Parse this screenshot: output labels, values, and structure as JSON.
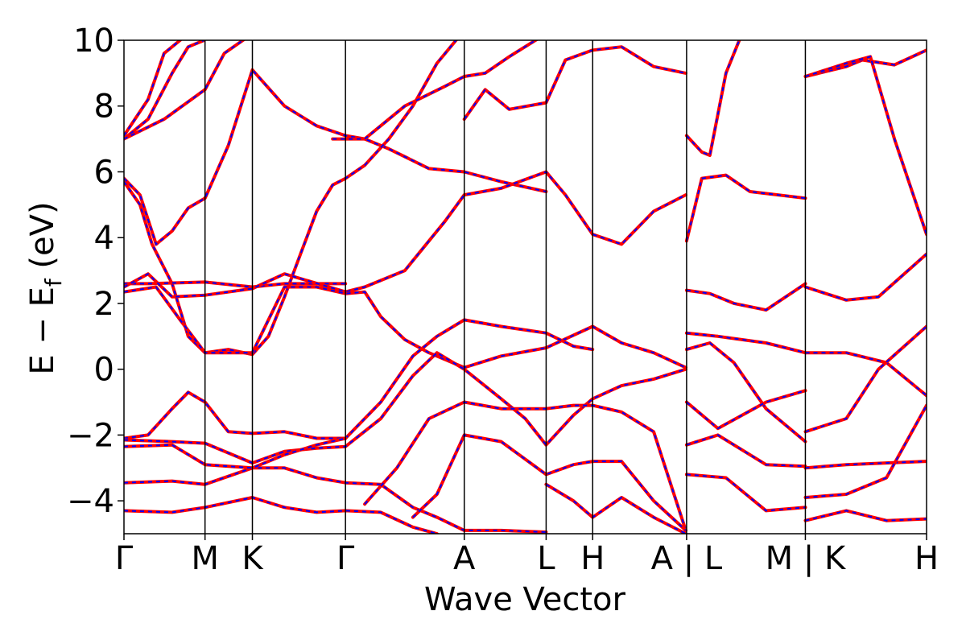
{
  "chart_data": {
    "type": "line",
    "title": "",
    "xlabel": "Wave Vector",
    "ylabel": "E − E",
    "ylabel_sub": "f",
    "ylabel_unit": " (eV)",
    "ylim": [
      -5,
      10
    ],
    "y_ticks": [
      -4,
      -2,
      0,
      2,
      4,
      6,
      8,
      10
    ],
    "y_tick_labels": [
      "−4",
      "−2",
      "0",
      "2",
      "4",
      "6",
      "8",
      "10"
    ],
    "x_ticks": [
      {
        "pos": 0.0,
        "label": "Γ"
      },
      {
        "pos": 0.101,
        "label": "M"
      },
      {
        "pos": 0.16,
        "label": "K"
      },
      {
        "pos": 0.276,
        "label": "Γ"
      },
      {
        "pos": 0.424,
        "label": "A"
      },
      {
        "pos": 0.526,
        "label": "L"
      },
      {
        "pos": 0.584,
        "label": "H"
      },
      {
        "pos": 0.701,
        "label": "A | L"
      },
      {
        "pos": 0.849,
        "label": "M | K"
      },
      {
        "pos": 1.0,
        "label": "H"
      }
    ],
    "xlim": [
      0,
      1
    ],
    "grid": false,
    "legend": "none",
    "colors": {
      "series_a": "#ff0000",
      "series_b": "#0000ff",
      "vline": "#000000"
    },
    "series": [
      {
        "values": [
          [
            0,
            7.0
          ],
          [
            0.03,
            7.6
          ],
          [
            0.06,
            9.0
          ],
          [
            0.08,
            9.8
          ],
          [
            0.1,
            10.0
          ]
        ]
      },
      {
        "values": [
          [
            0,
            7.1
          ],
          [
            0.03,
            8.2
          ],
          [
            0.05,
            9.6
          ],
          [
            0.07,
            10.0
          ]
        ]
      },
      {
        "values": [
          [
            0,
            7.0
          ],
          [
            0.05,
            7.6
          ],
          [
            0.101,
            8.5
          ],
          [
            0.125,
            9.6
          ],
          [
            0.16,
            10.2
          ]
        ]
      },
      {
        "values": [
          [
            0,
            5.8
          ],
          [
            0.02,
            5.3
          ],
          [
            0.04,
            3.8
          ],
          [
            0.06,
            4.2
          ],
          [
            0.08,
            4.9
          ],
          [
            0.101,
            5.2
          ],
          [
            0.13,
            6.8
          ],
          [
            0.16,
            9.1
          ],
          [
            0.2,
            8.0
          ],
          [
            0.24,
            7.4
          ],
          [
            0.276,
            7.1
          ],
          [
            0.3,
            7.0
          ],
          [
            0.33,
            6.7
          ],
          [
            0.38,
            6.1
          ],
          [
            0.424,
            6.0
          ],
          [
            0.47,
            5.7
          ],
          [
            0.526,
            5.4
          ]
        ]
      },
      {
        "values": [
          [
            0,
            5.7
          ],
          [
            0.02,
            5.0
          ],
          [
            0.035,
            3.8
          ],
          [
            0.06,
            2.6
          ],
          [
            0.08,
            1.0
          ],
          [
            0.101,
            0.5
          ],
          [
            0.13,
            0.6
          ],
          [
            0.16,
            0.45
          ],
          [
            0.18,
            1.0
          ],
          [
            0.2,
            2.2
          ],
          [
            0.22,
            3.5
          ],
          [
            0.24,
            4.8
          ],
          [
            0.26,
            5.6
          ],
          [
            0.276,
            5.8
          ],
          [
            0.3,
            6.2
          ],
          [
            0.33,
            7.0
          ],
          [
            0.36,
            8.0
          ],
          [
            0.39,
            9.3
          ],
          [
            0.424,
            10.3
          ]
        ]
      },
      {
        "values": [
          [
            0,
            2.6
          ],
          [
            0.03,
            2.6
          ],
          [
            0.101,
            2.65
          ],
          [
            0.16,
            2.5
          ],
          [
            0.2,
            2.6
          ],
          [
            0.276,
            2.6
          ]
        ]
      },
      {
        "values": [
          [
            0,
            2.5
          ],
          [
            0.03,
            2.9
          ],
          [
            0.06,
            2.2
          ],
          [
            0.101,
            2.25
          ],
          [
            0.16,
            2.45
          ],
          [
            0.2,
            2.9
          ],
          [
            0.276,
            2.35
          ],
          [
            0.3,
            2.5
          ],
          [
            0.35,
            3.0
          ],
          [
            0.4,
            4.5
          ],
          [
            0.424,
            5.3
          ],
          [
            0.47,
            5.5
          ],
          [
            0.526,
            6.0
          ],
          [
            0.55,
            5.3
          ],
          [
            0.584,
            4.1
          ],
          [
            0.62,
            3.8
          ],
          [
            0.66,
            4.8
          ],
          [
            0.7,
            5.3
          ]
        ]
      },
      {
        "values": [
          [
            0,
            2.35
          ],
          [
            0.04,
            2.5
          ],
          [
            0.07,
            1.5
          ],
          [
            0.101,
            0.5
          ],
          [
            0.16,
            0.5
          ],
          [
            0.2,
            2.5
          ],
          [
            0.24,
            2.5
          ],
          [
            0.276,
            2.3
          ],
          [
            0.3,
            2.35
          ],
          [
            0.32,
            1.6
          ],
          [
            0.35,
            0.9
          ],
          [
            0.38,
            0.5
          ],
          [
            0.424,
            0.05
          ],
          [
            0.47,
            0.4
          ],
          [
            0.526,
            0.65
          ],
          [
            0.584,
            1.3
          ],
          [
            0.62,
            0.8
          ],
          [
            0.66,
            0.5
          ],
          [
            0.7,
            0.05
          ]
        ]
      },
      {
        "values": [
          [
            0,
            -2.1
          ],
          [
            0.03,
            -2.0
          ],
          [
            0.06,
            -1.2
          ],
          [
            0.08,
            -0.7
          ],
          [
            0.101,
            -1.0
          ],
          [
            0.13,
            -1.9
          ],
          [
            0.16,
            -1.95
          ],
          [
            0.2,
            -1.9
          ],
          [
            0.24,
            -2.1
          ],
          [
            0.276,
            -2.1
          ],
          [
            0.32,
            -1.0
          ],
          [
            0.36,
            0.4
          ],
          [
            0.39,
            1.0
          ],
          [
            0.424,
            1.5
          ],
          [
            0.47,
            1.3
          ],
          [
            0.526,
            1.1
          ],
          [
            0.56,
            0.7
          ],
          [
            0.584,
            0.6
          ]
        ]
      },
      {
        "values": [
          [
            0,
            -2.15
          ],
          [
            0.06,
            -2.2
          ],
          [
            0.101,
            -2.25
          ],
          [
            0.16,
            -2.85
          ],
          [
            0.2,
            -2.5
          ],
          [
            0.24,
            -2.4
          ],
          [
            0.276,
            -2.35
          ],
          [
            0.32,
            -1.5
          ],
          [
            0.36,
            -0.2
          ],
          [
            0.39,
            0.5
          ],
          [
            0.424,
            0.0
          ],
          [
            0.47,
            -0.9
          ],
          [
            0.5,
            -1.5
          ],
          [
            0.526,
            -2.3
          ],
          [
            0.56,
            -1.4
          ],
          [
            0.584,
            -0.9
          ],
          [
            0.62,
            -0.5
          ],
          [
            0.66,
            -0.3
          ],
          [
            0.7,
            0.0
          ]
        ]
      },
      {
        "values": [
          [
            0,
            -3.45
          ],
          [
            0.06,
            -3.4
          ],
          [
            0.101,
            -3.5
          ],
          [
            0.16,
            -3.0
          ],
          [
            0.2,
            -3.0
          ],
          [
            0.24,
            -3.3
          ],
          [
            0.276,
            -3.45
          ],
          [
            0.32,
            -3.5
          ],
          [
            0.36,
            -4.2
          ],
          [
            0.39,
            -4.5
          ],
          [
            0.424,
            -4.9
          ],
          [
            0.47,
            -4.9
          ],
          [
            0.526,
            -4.95
          ]
        ]
      },
      {
        "values": [
          [
            0,
            -4.3
          ],
          [
            0.06,
            -4.35
          ],
          [
            0.101,
            -4.2
          ],
          [
            0.16,
            -3.9
          ],
          [
            0.2,
            -4.2
          ],
          [
            0.24,
            -4.35
          ],
          [
            0.276,
            -4.3
          ],
          [
            0.32,
            -4.35
          ],
          [
            0.36,
            -4.8
          ],
          [
            0.39,
            -5.0
          ]
        ]
      },
      {
        "values": [
          [
            0,
            -2.35
          ],
          [
            0.06,
            -2.3
          ],
          [
            0.101,
            -2.9
          ],
          [
            0.16,
            -3.0
          ],
          [
            0.2,
            -2.6
          ],
          [
            0.24,
            -2.3
          ],
          [
            0.276,
            -2.1
          ]
        ]
      },
      {
        "values": [
          [
            0.3,
            -4.1
          ],
          [
            0.34,
            -3.0
          ],
          [
            0.38,
            -1.5
          ],
          [
            0.424,
            -1.0
          ],
          [
            0.47,
            -1.2
          ],
          [
            0.526,
            -1.2
          ],
          [
            0.56,
            -1.1
          ],
          [
            0.584,
            -1.1
          ],
          [
            0.62,
            -1.3
          ],
          [
            0.66,
            -1.9
          ],
          [
            0.7,
            -4.9
          ]
        ]
      },
      {
        "values": [
          [
            0.36,
            -4.5
          ],
          [
            0.39,
            -3.8
          ],
          [
            0.424,
            -2.0
          ],
          [
            0.47,
            -2.2
          ],
          [
            0.526,
            -3.2
          ],
          [
            0.56,
            -2.9
          ],
          [
            0.584,
            -2.8
          ],
          [
            0.62,
            -2.8
          ],
          [
            0.66,
            -4.0
          ],
          [
            0.7,
            -4.9
          ]
        ]
      },
      {
        "values": [
          [
            0.526,
            -3.5
          ],
          [
            0.56,
            -4.0
          ],
          [
            0.584,
            -4.5
          ],
          [
            0.62,
            -3.9
          ],
          [
            0.66,
            -4.5
          ],
          [
            0.7,
            -5.0
          ]
        ]
      },
      {
        "values": [
          [
            0.424,
            7.6
          ],
          [
            0.45,
            8.5
          ],
          [
            0.48,
            7.9
          ],
          [
            0.526,
            8.1
          ],
          [
            0.55,
            9.4
          ],
          [
            0.584,
            9.7
          ],
          [
            0.62,
            9.8
          ],
          [
            0.66,
            9.2
          ],
          [
            0.7,
            9.0
          ]
        ]
      },
      {
        "values": [
          [
            0.26,
            7.0
          ],
          [
            0.3,
            7.0
          ],
          [
            0.35,
            8.0
          ],
          [
            0.4,
            8.6
          ],
          [
            0.424,
            8.9
          ],
          [
            0.45,
            9.0
          ],
          [
            0.48,
            9.5
          ],
          [
            0.526,
            10.2
          ]
        ]
      },
      {
        "values": [
          [
            0.701,
            7.1
          ],
          [
            0.72,
            6.6
          ],
          [
            0.73,
            6.5
          ],
          [
            0.75,
            9.0
          ],
          [
            0.77,
            10.2
          ]
        ]
      },
      {
        "values": [
          [
            0.701,
            3.9
          ],
          [
            0.72,
            5.8
          ],
          [
            0.75,
            5.9
          ],
          [
            0.78,
            5.4
          ],
          [
            0.849,
            5.2
          ]
        ]
      },
      {
        "values": [
          [
            0.701,
            2.4
          ],
          [
            0.73,
            2.3
          ],
          [
            0.76,
            2.0
          ],
          [
            0.8,
            1.8
          ],
          [
            0.849,
            2.6
          ]
        ]
      },
      {
        "values": [
          [
            0.701,
            1.1
          ],
          [
            0.74,
            1.0
          ],
          [
            0.8,
            0.8
          ],
          [
            0.849,
            0.5
          ]
        ]
      },
      {
        "values": [
          [
            0.701,
            0.6
          ],
          [
            0.73,
            0.8
          ],
          [
            0.76,
            0.2
          ],
          [
            0.8,
            -1.2
          ],
          [
            0.849,
            -2.2
          ]
        ]
      },
      {
        "values": [
          [
            0.701,
            -1.0
          ],
          [
            0.74,
            -1.8
          ],
          [
            0.8,
            -1.0
          ],
          [
            0.849,
            -0.65
          ]
        ]
      },
      {
        "values": [
          [
            0.701,
            -2.3
          ],
          [
            0.74,
            -2.0
          ],
          [
            0.8,
            -2.9
          ],
          [
            0.849,
            -2.95
          ]
        ]
      },
      {
        "values": [
          [
            0.701,
            -3.2
          ],
          [
            0.75,
            -3.3
          ],
          [
            0.8,
            -4.3
          ],
          [
            0.849,
            -4.2
          ]
        ]
      },
      {
        "values": [
          [
            0.849,
            8.9
          ],
          [
            0.9,
            9.2
          ],
          [
            0.92,
            9.4
          ],
          [
            0.96,
            9.25
          ],
          [
            1.0,
            9.7
          ]
        ]
      },
      {
        "values": [
          [
            0.849,
            8.9
          ],
          [
            0.9,
            9.3
          ],
          [
            0.93,
            9.5
          ],
          [
            0.96,
            7.0
          ],
          [
            1.0,
            4.1
          ]
        ]
      },
      {
        "values": [
          [
            0.849,
            2.5
          ],
          [
            0.9,
            2.1
          ],
          [
            0.94,
            2.2
          ],
          [
            1.0,
            3.5
          ]
        ]
      },
      {
        "values": [
          [
            0.849,
            0.5
          ],
          [
            0.9,
            0.5
          ],
          [
            0.95,
            0.2
          ],
          [
            1.0,
            -0.8
          ]
        ]
      },
      {
        "values": [
          [
            0.849,
            -1.9
          ],
          [
            0.9,
            -1.5
          ],
          [
            0.94,
            0.0
          ],
          [
            1.0,
            1.3
          ]
        ]
      },
      {
        "values": [
          [
            0.849,
            -3.0
          ],
          [
            0.9,
            -2.9
          ],
          [
            0.95,
            -2.85
          ],
          [
            1.0,
            -2.8
          ]
        ]
      },
      {
        "values": [
          [
            0.849,
            -3.9
          ],
          [
            0.9,
            -3.8
          ],
          [
            0.95,
            -3.3
          ],
          [
            1.0,
            -1.1
          ]
        ]
      },
      {
        "values": [
          [
            0.849,
            -4.6
          ],
          [
            0.9,
            -4.3
          ],
          [
            0.95,
            -4.6
          ],
          [
            1.0,
            -4.55
          ]
        ]
      }
    ]
  }
}
